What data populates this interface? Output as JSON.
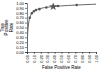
{
  "chart_data": {
    "type": "line",
    "xlabel": "False Positive Rate",
    "ylabel": "True\nPositive\nRate",
    "xlim": [
      0.0,
      1.0
    ],
    "ylim": [
      0.0,
      1.0
    ],
    "xticks": [
      {
        "value": 0.0,
        "label": "0.00"
      },
      {
        "value": 0.1,
        "label": "0.10"
      },
      {
        "value": 0.2,
        "label": "0.20"
      },
      {
        "value": 0.3,
        "label": "0.30"
      },
      {
        "value": 0.4,
        "label": "0.40"
      },
      {
        "value": 0.5,
        "label": "0.50"
      },
      {
        "value": 0.6,
        "label": "0.60"
      },
      {
        "value": 0.7,
        "label": "0.70"
      },
      {
        "value": 0.8,
        "label": "0.80"
      },
      {
        "value": 0.9,
        "label": "0.90"
      },
      {
        "value": 1.0,
        "label": "1.00"
      }
    ],
    "yticks": [
      {
        "value": 0.0,
        "label": "0.00"
      },
      {
        "value": 0.1,
        "label": "0.10"
      },
      {
        "value": 0.2,
        "label": "0.20"
      },
      {
        "value": 0.3,
        "label": "0.30"
      },
      {
        "value": 0.4,
        "label": "0.40"
      },
      {
        "value": 0.5,
        "label": "0.50"
      },
      {
        "value": 0.6,
        "label": "0.60"
      },
      {
        "value": 0.7,
        "label": "0.70"
      },
      {
        "value": 0.8,
        "label": "0.80"
      },
      {
        "value": 0.9,
        "label": "0.90"
      },
      {
        "value": 1.0,
        "label": "1.00"
      }
    ],
    "grid": false,
    "series": [
      {
        "type": "line",
        "color": "#666666",
        "x": [
          0.0,
          0.01,
          0.02,
          0.03,
          0.04,
          0.05,
          0.07,
          0.09,
          0.12,
          0.15,
          0.2,
          0.25,
          0.3,
          0.35,
          0.4,
          0.45,
          0.5,
          0.55,
          0.6,
          0.65,
          0.7,
          0.75,
          0.8,
          0.85,
          0.9,
          0.95,
          1.0
        ],
        "values": [
          0.0,
          0.4,
          0.55,
          0.65,
          0.7,
          0.74,
          0.79,
          0.82,
          0.85,
          0.87,
          0.89,
          0.905,
          0.915,
          0.923,
          0.93,
          0.936,
          0.941,
          0.946,
          0.95,
          0.954,
          0.958,
          0.961,
          0.964,
          0.967,
          0.97,
          0.973,
          0.976
        ]
      },
      {
        "type": "scatter",
        "marker": "circle",
        "color": "#555555",
        "x": [
          0.04,
          0.07,
          0.1,
          0.13,
          0.18,
          0.28,
          0.45,
          0.72
        ],
        "values": [
          0.7,
          0.79,
          0.83,
          0.855,
          0.875,
          0.91,
          0.937,
          0.959
        ]
      },
      {
        "type": "scatter",
        "marker": "star",
        "color": "#555555",
        "x": [
          0.38
        ],
        "values": [
          0.928
        ]
      }
    ]
  }
}
